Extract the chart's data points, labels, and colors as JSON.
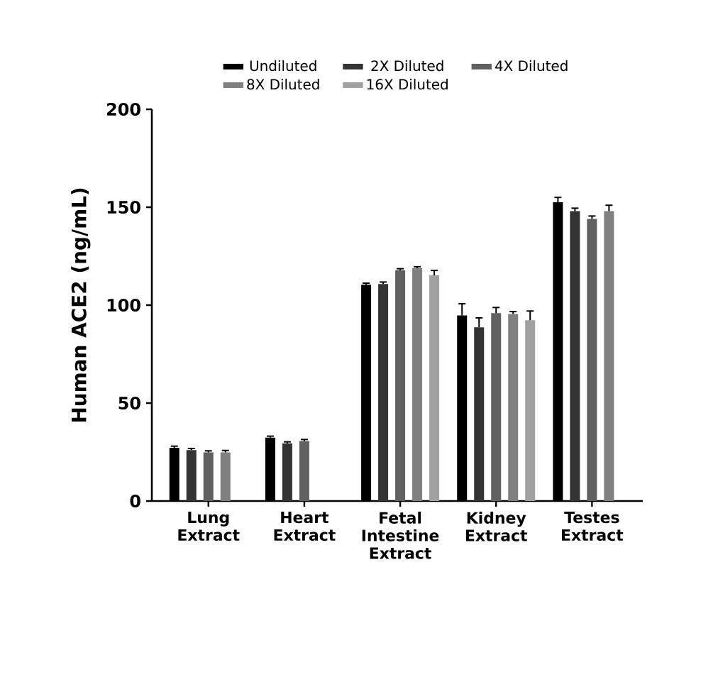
{
  "chart_data": {
    "type": "bar",
    "ylabel": "Human ACE2 (ng/mL)",
    "categories": [
      "Lung Extract",
      "Heart Extract",
      "Fetal Intestine Extract",
      "Kidney Extract",
      "Testes Extract"
    ],
    "series": [
      {
        "name": "Undiluted",
        "color": "#000000",
        "values": [
          27.2,
          32.3,
          110.4,
          94.7,
          152.5
        ],
        "errors": [
          0.8,
          0.8,
          0.8,
          6,
          2.5
        ]
      },
      {
        "name": "2X Diluted",
        "color": "#333333",
        "values": [
          26,
          29.4,
          110.8,
          88.7,
          148
        ],
        "errors": [
          0.8,
          0.8,
          1,
          4.8,
          1.5
        ]
      },
      {
        "name": "4X Diluted",
        "color": "#606060",
        "values": [
          24.8,
          30.6,
          117.8,
          95.9,
          144
        ],
        "errors": [
          0.8,
          0.8,
          0.8,
          2.9,
          1.5
        ]
      },
      {
        "name": "8X Diluted",
        "color": "#808080",
        "values": [
          24.8,
          null,
          118.8,
          95.5,
          148
        ],
        "errors": [
          1,
          null,
          0.8,
          1.2,
          3
        ]
      },
      {
        "name": "16X Diluted",
        "color": "#a0a0a0",
        "values": [
          null,
          null,
          115.2,
          92.3,
          null
        ],
        "errors": [
          null,
          null,
          2.5,
          4.7,
          null
        ]
      }
    ],
    "ylim": [
      0,
      200
    ],
    "yticks": [
      0,
      50,
      100,
      150,
      200
    ],
    "legend": "top"
  }
}
